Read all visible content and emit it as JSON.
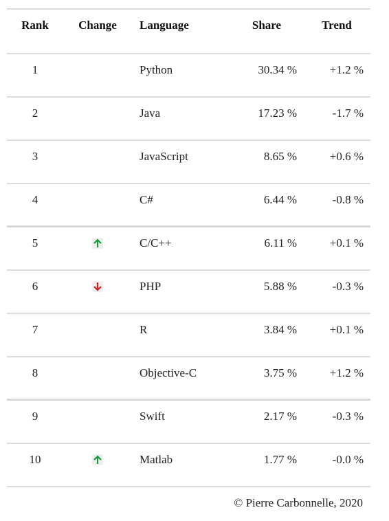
{
  "table": {
    "headers": {
      "rank": "Rank",
      "change": "Change",
      "language": "Language",
      "share": "Share",
      "trend": "Trend"
    },
    "rows": [
      {
        "rank": "1",
        "change": "",
        "language": "Python",
        "share": "30.34 %",
        "trend": "+1.2 %"
      },
      {
        "rank": "2",
        "change": "",
        "language": "Java",
        "share": "17.23 %",
        "trend": "-1.7 %"
      },
      {
        "rank": "3",
        "change": "",
        "language": "JavaScript",
        "share": "8.65 %",
        "trend": "+0.6 %"
      },
      {
        "rank": "4",
        "change": "",
        "language": "C#",
        "share": "6.44 %",
        "trend": "-0.8 %"
      },
      {
        "rank": "5",
        "change": "up",
        "language": "C/C++",
        "share": "6.11 %",
        "trend": "+0.1 %"
      },
      {
        "rank": "6",
        "change": "down",
        "language": "PHP",
        "share": "5.88 %",
        "trend": "-0.3 %"
      },
      {
        "rank": "7",
        "change": "",
        "language": "R",
        "share": "3.84 %",
        "trend": "+0.1 %"
      },
      {
        "rank": "8",
        "change": "",
        "language": "Objective-C",
        "share": "3.75 %",
        "trend": "+1.2 %"
      },
      {
        "rank": "9",
        "change": "",
        "language": "Swift",
        "share": "2.17 %",
        "trend": "-0.3 %"
      },
      {
        "rank": "10",
        "change": "up",
        "language": "Matlab",
        "share": "1.77 %",
        "trend": "-0.0 %"
      }
    ]
  },
  "icons": {
    "up": "arrow-up-icon",
    "down": "arrow-down-icon"
  },
  "colors": {
    "up": "#1a9a3a",
    "down": "#cc1f1f",
    "rule": "#dddddd"
  },
  "footer": {
    "credit": "© Pierre Carbonnelle, 2020"
  }
}
